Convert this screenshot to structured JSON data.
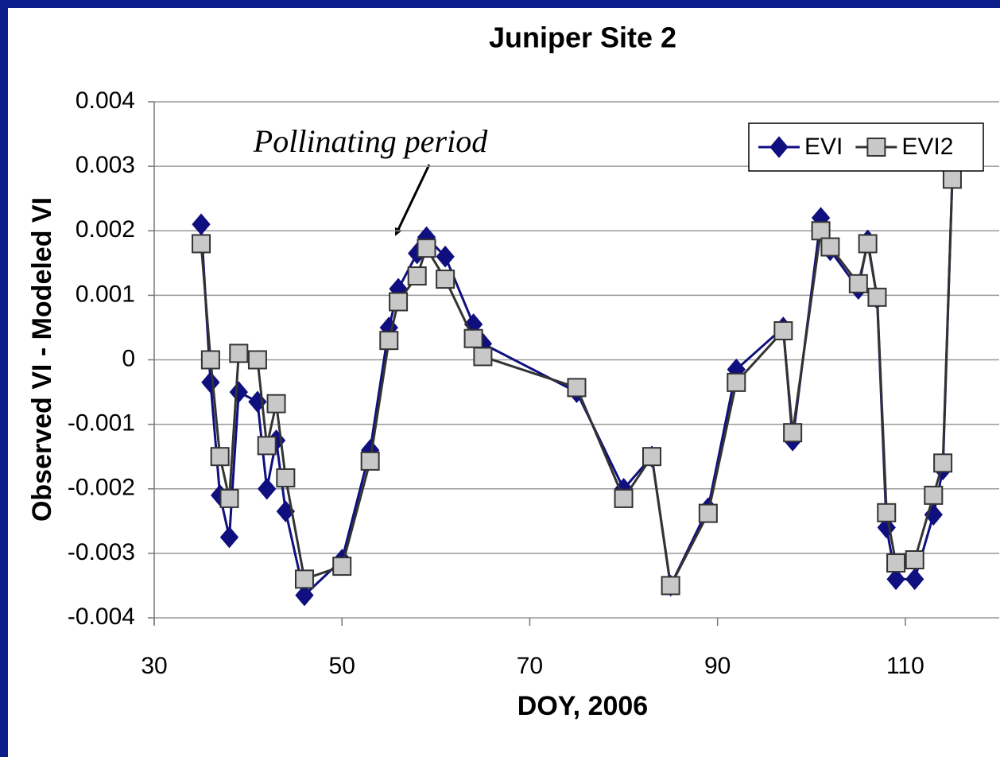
{
  "chart_data": {
    "type": "line",
    "title": "Juniper Site 2",
    "x_label": "DOY, 2006",
    "y_label": "Observed VI - Modeled VI",
    "annotation": "Pollinating period",
    "x": [
      35,
      36,
      37,
      38,
      39,
      41,
      42,
      43,
      44,
      46,
      50,
      53,
      55,
      56,
      58,
      59,
      61,
      64,
      65,
      75,
      80,
      83,
      85,
      89,
      92,
      97,
      98,
      101,
      102,
      105,
      106,
      107,
      108,
      109,
      111,
      113,
      114,
      115
    ],
    "series": [
      {
        "name": "EVI",
        "color": "#0f0f80",
        "marker": "diamond",
        "values": [
          0.0021,
          -0.00035,
          -0.0021,
          -0.00275,
          -0.0005,
          -0.00065,
          -0.002,
          -0.00125,
          -0.00235,
          -0.00365,
          -0.0031,
          -0.0014,
          0.0005,
          0.0011,
          0.00165,
          0.0019,
          0.0016,
          0.00055,
          0.00025,
          -0.0005,
          -0.002,
          -0.0015,
          -0.0035,
          -0.0023,
          -0.00015,
          0.0005,
          -0.00125,
          0.0022,
          0.0017,
          0.0011,
          0.00185,
          0.00095,
          -0.0026,
          -0.0034,
          -0.0034,
          -0.0024,
          -0.0017,
          0.0028
        ]
      },
      {
        "name": "EVI2",
        "color": "#333333",
        "marker": "square",
        "values": [
          0.0018,
          0,
          -0.0015,
          -0.00215,
          0.0001,
          0,
          -0.00133,
          -0.00068,
          -0.00183,
          -0.0034,
          -0.0032,
          -0.00157,
          0.0003,
          0.0009,
          0.0013,
          0.00173,
          0.00125,
          0.00033,
          5e-05,
          -0.00043,
          -0.00215,
          -0.0015,
          -0.0035,
          -0.00238,
          -0.00035,
          0.00045,
          -0.00113,
          0.002,
          0.00175,
          0.00118,
          0.0018,
          0.00097,
          -0.00237,
          -0.00315,
          -0.0031,
          -0.0021,
          -0.0016,
          0.0028
        ]
      }
    ],
    "xlim": [
      30,
      120
    ],
    "xticks": [
      30,
      50,
      70,
      90,
      110
    ],
    "ylim": [
      -0.004,
      0.004
    ],
    "yticks": [
      -0.004,
      -0.003,
      -0.002,
      -0.001,
      0,
      0.001,
      0.002,
      0.003,
      0.004
    ],
    "grid": true,
    "legend": "top-right"
  }
}
